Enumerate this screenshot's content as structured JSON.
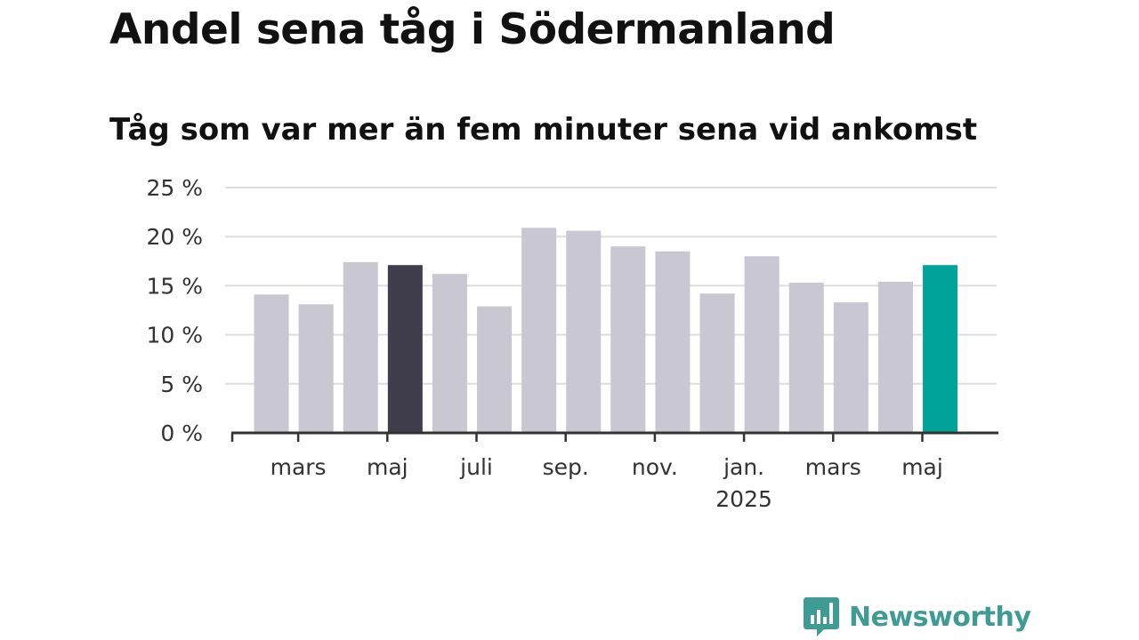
{
  "title": "Andel sena tåg i Södermanland",
  "subtitle": "Tåg som var mer än fem minuter sena vid ankomst",
  "brand": {
    "name": "Newsworthy",
    "color": "#3f9c95",
    "icon": "newsworthy-logo-icon"
  },
  "colors": {
    "default_bar": "#c8c7d2",
    "highlight_prev": "#403e4d",
    "highlight_latest": "#00a39a",
    "grid": "#dddddd",
    "axis": "#333333"
  },
  "chart_data": {
    "type": "bar",
    "x": [
      "2024-02",
      "2024-03",
      "2024-04",
      "2024-05",
      "2024-06",
      "2024-07",
      "2024-08",
      "2024-09",
      "2024-10",
      "2024-11",
      "2024-12",
      "2025-01",
      "2025-02",
      "2025-03",
      "2025-04",
      "2025-05"
    ],
    "values": [
      14.1,
      13.1,
      17.4,
      17.1,
      16.2,
      12.9,
      20.9,
      20.6,
      19.0,
      18.5,
      14.2,
      18.0,
      15.3,
      13.3,
      15.4,
      17.1
    ],
    "highlight": {
      "2024-05": "highlight_prev",
      "2025-05": "highlight_latest"
    },
    "ylim": [
      0,
      25
    ],
    "yticks": [
      0,
      5,
      10,
      15,
      20,
      25
    ],
    "ytick_labels": [
      "0 %",
      "5 %",
      "10 %",
      "15 %",
      "20 %",
      "25 %"
    ],
    "xtick_labels": [
      {
        "x": "2024-03",
        "label": "mars",
        "sub": ""
      },
      {
        "x": "2024-05",
        "label": "maj",
        "sub": ""
      },
      {
        "x": "2024-07",
        "label": "juli",
        "sub": ""
      },
      {
        "x": "2024-09",
        "label": "sep.",
        "sub": ""
      },
      {
        "x": "2024-11",
        "label": "nov.",
        "sub": ""
      },
      {
        "x": "2025-01",
        "label": "jan.",
        "sub": "2025"
      },
      {
        "x": "2025-03",
        "label": "mars",
        "sub": ""
      },
      {
        "x": "2025-05",
        "label": "maj",
        "sub": ""
      }
    ],
    "grid": true,
    "xlabel": "",
    "ylabel": ""
  }
}
